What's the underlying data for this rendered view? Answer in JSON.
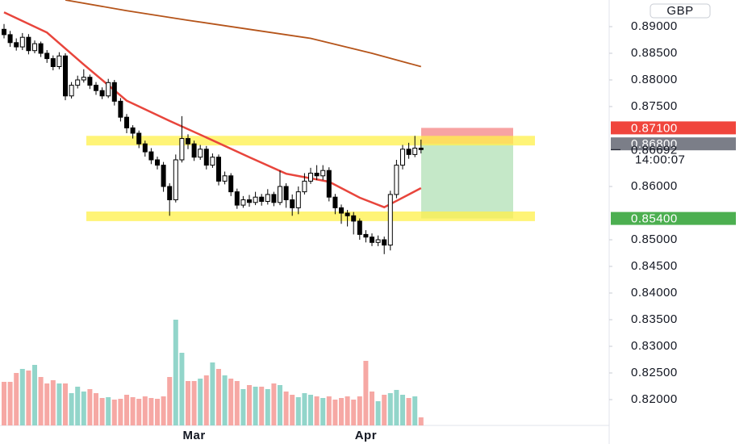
{
  "chart_data": {
    "type": "candlestick",
    "currency": "GBP",
    "categories": [
      null,
      null,
      null,
      null,
      null,
      null,
      null,
      null,
      null,
      null,
      null,
      null,
      null,
      null,
      null,
      null,
      null,
      null,
      null,
      null,
      null,
      null,
      null,
      null,
      null,
      null,
      null,
      null,
      null,
      null,
      null,
      "Mar",
      null,
      null,
      null,
      null,
      null,
      null,
      null,
      null,
      null,
      null,
      null,
      null,
      null,
      null,
      null,
      null,
      null,
      null,
      null,
      null,
      null,
      null,
      null,
      null,
      null,
      null,
      null,
      "Apr",
      null,
      null,
      null,
      null,
      null,
      null,
      null,
      null,
      null
    ],
    "open": [
      0.8895,
      0.8885,
      0.887,
      0.8862,
      0.888,
      0.8855,
      0.8868,
      0.885,
      0.884,
      0.8825,
      0.8845,
      0.877,
      0.879,
      0.88,
      0.8805,
      0.879,
      0.878,
      0.877,
      0.8795,
      0.876,
      0.873,
      0.871,
      0.87,
      0.868,
      0.8665,
      0.865,
      0.864,
      0.86,
      0.8575,
      0.865,
      0.869,
      0.868,
      0.8655,
      0.867,
      0.864,
      0.8655,
      0.861,
      0.862,
      0.859,
      0.8565,
      0.8575,
      0.857,
      0.858,
      0.8572,
      0.8585,
      0.857,
      0.86,
      0.8575,
      0.856,
      0.859,
      0.861,
      0.8625,
      0.862,
      0.863,
      0.858,
      0.856,
      0.855,
      0.8545,
      0.8535,
      0.851,
      0.8505,
      0.8495,
      0.85,
      0.849,
      0.8585,
      0.864,
      0.867,
      0.866,
      0.8672
    ],
    "high": [
      0.8905,
      0.8892,
      0.8878,
      0.8888,
      0.8886,
      0.8874,
      0.8872,
      0.8856,
      0.8846,
      0.8852,
      0.885,
      0.8796,
      0.8808,
      0.882,
      0.881,
      0.8796,
      0.8786,
      0.8802,
      0.88,
      0.8766,
      0.8736,
      0.8715,
      0.8705,
      0.8686,
      0.8672,
      0.8656,
      0.8646,
      0.8606,
      0.866,
      0.8732,
      0.8698,
      0.8686,
      0.8678,
      0.8676,
      0.8662,
      0.866,
      0.8628,
      0.8625,
      0.8596,
      0.8582,
      0.8584,
      0.859,
      0.8586,
      0.8595,
      0.859,
      0.863,
      0.8606,
      0.8585,
      0.86,
      0.8625,
      0.8635,
      0.864,
      0.864,
      0.8636,
      0.8586,
      0.8566,
      0.8556,
      0.8552,
      0.854,
      0.8518,
      0.8512,
      0.8508,
      0.8506,
      0.8592,
      0.865,
      0.8678,
      0.8682,
      0.8695,
      0.8688
    ],
    "low": [
      0.8878,
      0.8862,
      0.8855,
      0.8856,
      0.8848,
      0.885,
      0.8843,
      0.8832,
      0.8818,
      0.882,
      0.8762,
      0.8765,
      0.8784,
      0.8795,
      0.8783,
      0.8772,
      0.8764,
      0.8766,
      0.8752,
      0.8722,
      0.87,
      0.869,
      0.8672,
      0.8656,
      0.8642,
      0.8632,
      0.859,
      0.8545,
      0.857,
      0.8645,
      0.867,
      0.8648,
      0.865,
      0.8632,
      0.8635,
      0.8602,
      0.8604,
      0.8582,
      0.8558,
      0.856,
      0.8562,
      0.8565,
      0.8564,
      0.8566,
      0.8563,
      0.8565,
      0.856,
      0.8545,
      0.8548,
      0.8585,
      0.8605,
      0.8612,
      0.8612,
      0.8572,
      0.8548,
      0.853,
      0.8525,
      0.851,
      0.85,
      0.8495,
      0.8488,
      0.8488,
      0.8473,
      0.848,
      0.8578,
      0.8632,
      0.8652,
      0.8655,
      0.8662
    ],
    "close": [
      0.8885,
      0.887,
      0.8862,
      0.888,
      0.8855,
      0.8868,
      0.885,
      0.884,
      0.8825,
      0.8845,
      0.877,
      0.879,
      0.88,
      0.8805,
      0.879,
      0.878,
      0.877,
      0.8795,
      0.876,
      0.873,
      0.871,
      0.87,
      0.868,
      0.8665,
      0.865,
      0.864,
      0.86,
      0.8575,
      0.865,
      0.869,
      0.868,
      0.8655,
      0.867,
      0.864,
      0.8655,
      0.861,
      0.862,
      0.859,
      0.8565,
      0.8575,
      0.857,
      0.858,
      0.8572,
      0.8585,
      0.857,
      0.86,
      0.8575,
      0.856,
      0.859,
      0.861,
      0.8625,
      0.862,
      0.863,
      0.858,
      0.856,
      0.855,
      0.8545,
      0.8535,
      0.851,
      0.8505,
      0.8495,
      0.85,
      0.849,
      0.8585,
      0.864,
      0.867,
      0.866,
      0.8672,
      0.86692
    ],
    "volume": [
      54,
      54,
      65,
      70,
      68,
      75,
      60,
      52,
      56,
      52,
      52,
      40,
      48,
      42,
      45,
      40,
      34,
      35,
      32,
      33,
      38,
      35,
      33,
      36,
      34,
      33,
      36,
      60,
      131,
      90,
      55,
      55,
      58,
      62,
      78,
      70,
      62,
      58,
      55,
      45,
      50,
      48,
      48,
      45,
      52,
      50,
      42,
      38,
      35,
      40,
      38,
      36,
      34,
      36,
      32,
      34,
      36,
      32,
      36,
      80,
      42,
      30,
      38,
      40,
      44,
      38,
      34,
      36,
      10
    ],
    "up_color": "#ffffff",
    "down_color": "#000000",
    "volume_up_color": "#92d5ca",
    "volume_down_color": "#f6a8a4",
    "ylim": [
      0.81515,
      0.895
    ],
    "yticks": [
      {
        "value": 0.89,
        "label": "0.89000"
      },
      {
        "value": 0.885,
        "label": "0.88500"
      },
      {
        "value": 0.88,
        "label": "0.88000"
      },
      {
        "value": 0.875,
        "label": "0.87500"
      },
      {
        "value": 0.86,
        "label": "0.86000"
      },
      {
        "value": 0.85,
        "label": "0.85000"
      },
      {
        "value": 0.845,
        "label": "0.84500"
      },
      {
        "value": 0.84,
        "label": "0.84000"
      },
      {
        "value": 0.835,
        "label": "0.83500"
      },
      {
        "value": 0.83,
        "label": "0.83000"
      },
      {
        "value": 0.825,
        "label": "0.82500"
      },
      {
        "value": 0.82,
        "label": "0.82000"
      }
    ],
    "indicators": [
      {
        "color": "#b5541a",
        "x": [
          10,
          20,
          30,
          40,
          50,
          60,
          68
        ],
        "values": [
          0.895,
          0.893,
          0.8912,
          0.8895,
          0.8878,
          0.885,
          0.8825
        ]
      },
      {
        "color": "#e8453c",
        "x": [
          0,
          7,
          13,
          20,
          27,
          33,
          40,
          46,
          53,
          58,
          62,
          63,
          68
        ],
        "values": [
          0.8927,
          0.8889,
          0.8829,
          0.8761,
          0.8723,
          0.8692,
          0.8655,
          0.8624,
          0.8609,
          0.8579,
          0.8561,
          0.8567,
          0.8597
        ]
      }
    ],
    "zones": [
      {
        "from": 0.8677,
        "to": 0.8695,
        "color": "#fff04a"
      },
      {
        "from": 0.8535,
        "to": 0.8553,
        "color": "#fff04a"
      }
    ],
    "position": {
      "entry": 0.868,
      "stop": 0.871,
      "target": 0.854,
      "stop_color": "#f7a3a3",
      "target_color": "#9fd9a3"
    },
    "price_labels": [
      {
        "value": 0.871,
        "label": "0.87100",
        "color": "#f0453c"
      },
      {
        "value": 0.868,
        "label": "0.86800",
        "color": "#7b7e88"
      },
      {
        "value": 0.86692,
        "label": "0.86692",
        "time": "14:00:07"
      },
      {
        "value": 0.854,
        "label": "0.85400",
        "color": "#4caf50"
      }
    ]
  }
}
